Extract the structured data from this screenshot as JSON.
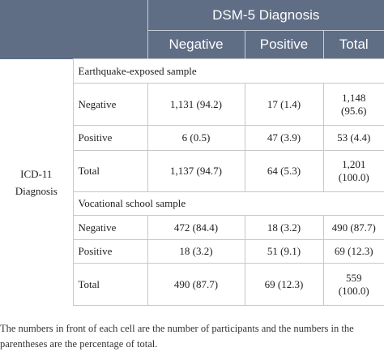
{
  "header": {
    "group_title": "DSM-5 Diagnosis",
    "columns": [
      "Negative",
      "Positive",
      "Total"
    ]
  },
  "row_header": [
    "ICD-11",
    "Diagnosis"
  ],
  "sections": [
    {
      "title": "Earthquake-exposed sample",
      "rows": [
        {
          "label": "Negative",
          "negative": "1,131 (94.2)",
          "positive": "17 (1.4)",
          "total_line1": "1,148",
          "total_line2": "(95.6)"
        },
        {
          "label": "Positive",
          "negative": "6 (0.5)",
          "positive": "47 (3.9)",
          "total_line1": "53 (4.4)",
          "total_line2": ""
        },
        {
          "label": "Total",
          "negative": "1,137 (94.7)",
          "positive": "64 (5.3)",
          "total_line1": "1,201",
          "total_line2": "(100.0)"
        }
      ]
    },
    {
      "title": "Vocational school sample",
      "rows": [
        {
          "label": "Negative",
          "negative": "472 (84.4)",
          "positive": "18 (3.2)",
          "total_line1": "490 (87.7)",
          "total_line2": ""
        },
        {
          "label": "Positive",
          "negative": "18 (3.2)",
          "positive": "51 (9.1)",
          "total_line1": "69 (12.3)",
          "total_line2": ""
        },
        {
          "label": "Total",
          "negative": "490 (87.7)",
          "positive": "69 (12.3)",
          "total_line1": "559",
          "total_line2": "(100.0)"
        }
      ]
    }
  ],
  "footnote": "The numbers in front of each cell are the number of participants and the numbers in the parentheses are the percentage of total."
}
